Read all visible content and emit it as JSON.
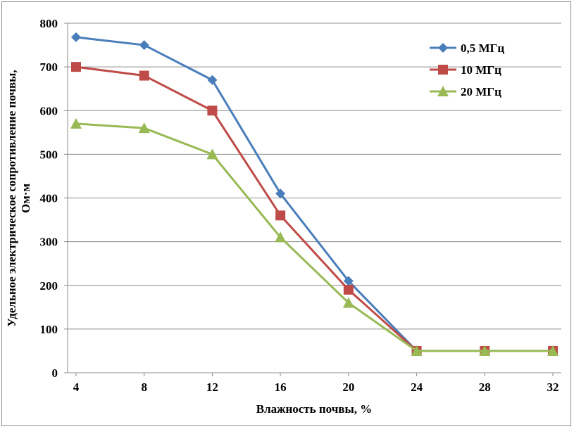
{
  "chart_data": {
    "type": "line",
    "x": [
      4,
      8,
      12,
      16,
      20,
      24,
      28,
      32
    ],
    "series": [
      {
        "name": "0,5 МГц",
        "color": "#4a7ebb",
        "marker": "diamond",
        "values": [
          768,
          750,
          670,
          410,
          210,
          50,
          50,
          50
        ]
      },
      {
        "name": "10 МГц",
        "color": "#be4b48",
        "marker": "square",
        "values": [
          700,
          680,
          600,
          360,
          190,
          50,
          50,
          50
        ]
      },
      {
        "name": "20 МГц",
        "color": "#98b954",
        "marker": "triangle",
        "values": [
          570,
          560,
          500,
          310,
          160,
          50,
          50,
          50
        ]
      }
    ],
    "xticks": [
      "4",
      "8",
      "12",
      "16",
      "20",
      "24",
      "28",
      "32"
    ],
    "yticks": [
      "0",
      "100",
      "200",
      "300",
      "400",
      "500",
      "600",
      "700",
      "800"
    ],
    "ylim": [
      0,
      800
    ],
    "xlabel": "Влажность почвы, %",
    "ylabel_line1": "Удельное электрическое сопротивление почвы,",
    "ylabel_line2": "Ом·м",
    "grid": "horizontal",
    "legend_position": "top-right"
  }
}
